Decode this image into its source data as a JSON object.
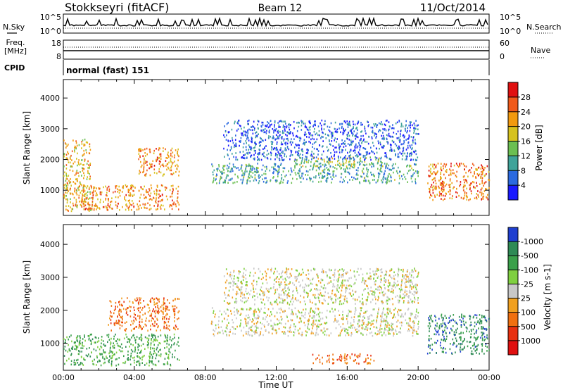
{
  "header": {
    "station": "Stokkseyri (fitACF)",
    "beam": "Beam 12",
    "date": "11/Oct/2014"
  },
  "side_labels": {
    "nsky": "N.Sky",
    "nsearch": "N.Search",
    "freq_line1": "Freq.",
    "freq_line2": "[MHz]",
    "nave": "Nave",
    "cpid": "CPID"
  },
  "panels": {
    "noise_ticks_left": [
      "10^5",
      "10^0"
    ],
    "noise_ticks_right": [
      "10^5",
      "10^0"
    ],
    "freq_ticks_left": [
      "18",
      "8"
    ],
    "freq_ticks_right": [
      "60",
      "0"
    ],
    "cpid_text": "normal (fast) 151"
  },
  "chart_data": [
    {
      "type": "heatmap",
      "name": "power",
      "xlabel": "Time UT",
      "ylabel": "Slant Range [km]",
      "x_ticks": [
        "00:00",
        "04:00",
        "08:00",
        "12:00",
        "16:00",
        "20:00",
        "00:00"
      ],
      "y_ticks": [
        1000,
        2000,
        3000,
        4000
      ],
      "ylim": [
        180,
        4600
      ],
      "colorbar": {
        "label": "Power [dB]",
        "ticks": [
          4,
          8,
          12,
          16,
          20,
          24,
          28
        ],
        "colors": [
          "#1a1aff",
          "#2b6ae0",
          "#3fa39a",
          "#6bbf52",
          "#d6c21e",
          "#f29a0f",
          "#f05a1a",
          "#e01010"
        ]
      },
      "echo_regions": [
        {
          "t0": 0.0,
          "t1": 1.5,
          "r0": 350,
          "r1": 2700,
          "level": 0.65
        },
        {
          "t0": 1.0,
          "t1": 6.5,
          "r0": 380,
          "r1": 1200,
          "level": 0.75
        },
        {
          "t0": 4.2,
          "t1": 6.5,
          "r0": 1500,
          "r1": 2400,
          "level": 0.75
        },
        {
          "t0": 8.3,
          "t1": 20.0,
          "r0": 1250,
          "r1": 1900,
          "level": 0.3
        },
        {
          "t0": 13.0,
          "t1": 18.5,
          "r0": 1800,
          "r1": 2100,
          "level": 0.45
        },
        {
          "t0": 20.5,
          "t1": 24.0,
          "r0": 700,
          "r1": 1900,
          "level": 0.8
        },
        {
          "t0": 9.0,
          "t1": 20.0,
          "r0": 2000,
          "r1": 3300,
          "level": 0.12
        }
      ]
    },
    {
      "type": "heatmap",
      "name": "velocity",
      "xlabel": "Time UT",
      "ylabel": "Slant Range [km]",
      "x_ticks": [
        "00:00",
        "04:00",
        "08:00",
        "12:00",
        "16:00",
        "20:00",
        "00:00"
      ],
      "y_ticks": [
        1000,
        2000,
        3000,
        4000
      ],
      "ylim": [
        180,
        4600
      ],
      "colorbar": {
        "label": "Velocity [m s-1]",
        "ticks": [
          1000,
          500,
          100,
          25,
          -25,
          -100,
          -500,
          -1000
        ],
        "colors": [
          "#1f3fd0",
          "#2e8a55",
          "#3aa04a",
          "#7fd040",
          "#c8c8c8",
          "#f0a020",
          "#f07010",
          "#e83010",
          "#e01010"
        ]
      },
      "echo_regions": [
        {
          "t0": 0.0,
          "t1": 6.5,
          "r0": 350,
          "r1": 1300,
          "level": 2
        },
        {
          "t0": 2.5,
          "t1": 6.5,
          "r0": 1400,
          "r1": 2400,
          "level": 6
        },
        {
          "t0": 8.3,
          "t1": 20.0,
          "r0": 1250,
          "r1": 2100,
          "level": 4
        },
        {
          "t0": 14.0,
          "t1": 17.5,
          "r0": 400,
          "r1": 700,
          "level": 6
        },
        {
          "t0": 20.5,
          "t1": 24.0,
          "r0": 700,
          "r1": 1900,
          "level": 1
        },
        {
          "t0": 9.0,
          "t1": 20.0,
          "r0": 2200,
          "r1": 3300,
          "level": 4
        }
      ]
    }
  ]
}
